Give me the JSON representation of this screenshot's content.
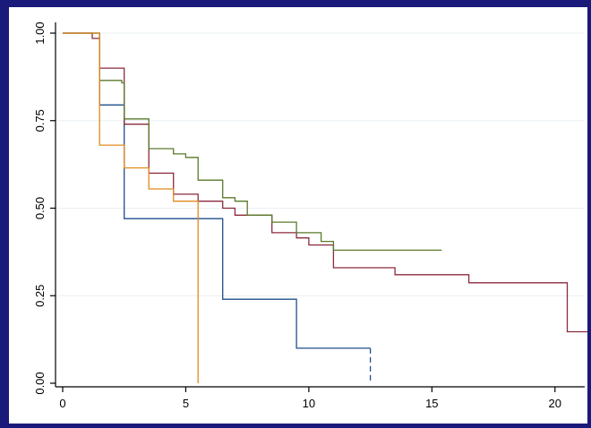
{
  "chart_data": {
    "type": "line",
    "step": true,
    "title": "",
    "xlabel": "",
    "ylabel": "",
    "xlim": [
      0,
      21.5
    ],
    "ylim": [
      0,
      1
    ],
    "x_ticks": [
      0,
      5,
      10,
      15,
      20
    ],
    "x_tick_labels": [
      "0",
      "5",
      "10",
      "15",
      "20"
    ],
    "y_ticks": [
      0,
      0.25,
      0.5,
      0.75,
      1
    ],
    "y_tick_labels": [
      "0.00",
      "0.25",
      "0.50",
      "0.75",
      "1.00"
    ],
    "grid": "horizontal",
    "legend": "none",
    "series": [
      {
        "color": "#1f4e8c",
        "points": [
          [
            0,
            1.0
          ],
          [
            1.5,
            1.0
          ],
          [
            1.5,
            0.795
          ],
          [
            2.5,
            0.795
          ],
          [
            2.5,
            0.47
          ],
          [
            6.5,
            0.47
          ],
          [
            6.5,
            0.24
          ],
          [
            9.5,
            0.24
          ],
          [
            9.5,
            0.1
          ],
          [
            12.5,
            0.1
          ],
          [
            12.5,
            0.0
          ]
        ],
        "dashed_from": 12.5
      },
      {
        "color": "#8c2a3c",
        "points": [
          [
            0,
            1.0
          ],
          [
            1.2,
            1.0
          ],
          [
            1.2,
            0.985
          ],
          [
            1.5,
            0.985
          ],
          [
            1.5,
            0.9
          ],
          [
            2.5,
            0.9
          ],
          [
            2.5,
            0.74
          ],
          [
            3.5,
            0.74
          ],
          [
            3.5,
            0.6
          ],
          [
            4.5,
            0.6
          ],
          [
            4.5,
            0.54
          ],
          [
            5.5,
            0.54
          ],
          [
            5.5,
            0.52
          ],
          [
            6.5,
            0.52
          ],
          [
            6.5,
            0.5
          ],
          [
            7.0,
            0.5
          ],
          [
            7.0,
            0.48
          ],
          [
            8.5,
            0.48
          ],
          [
            8.5,
            0.43
          ],
          [
            9.5,
            0.43
          ],
          [
            9.5,
            0.415
          ],
          [
            10.0,
            0.415
          ],
          [
            10.0,
            0.395
          ],
          [
            11.0,
            0.395
          ],
          [
            11.0,
            0.33
          ],
          [
            13.5,
            0.33
          ],
          [
            13.5,
            0.31
          ],
          [
            16.5,
            0.31
          ],
          [
            16.5,
            0.287
          ],
          [
            20.5,
            0.287
          ],
          [
            20.5,
            0.147
          ],
          [
            21.5,
            0.147
          ]
        ]
      },
      {
        "color": "#5a7a2a",
        "points": [
          [
            0,
            1.0
          ],
          [
            1.5,
            1.0
          ],
          [
            1.5,
            0.865
          ],
          [
            2.4,
            0.865
          ],
          [
            2.4,
            0.858
          ],
          [
            2.5,
            0.858
          ],
          [
            2.5,
            0.755
          ],
          [
            3.5,
            0.755
          ],
          [
            3.5,
            0.67
          ],
          [
            4.5,
            0.67
          ],
          [
            4.5,
            0.655
          ],
          [
            5.0,
            0.655
          ],
          [
            5.0,
            0.645
          ],
          [
            5.5,
            0.645
          ],
          [
            5.5,
            0.58
          ],
          [
            6.5,
            0.58
          ],
          [
            6.5,
            0.53
          ],
          [
            7.0,
            0.53
          ],
          [
            7.0,
            0.52
          ],
          [
            7.5,
            0.52
          ],
          [
            7.5,
            0.48
          ],
          [
            8.5,
            0.48
          ],
          [
            8.5,
            0.46
          ],
          [
            9.5,
            0.46
          ],
          [
            9.5,
            0.43
          ],
          [
            10.5,
            0.43
          ],
          [
            10.5,
            0.405
          ],
          [
            11.0,
            0.405
          ],
          [
            11.0,
            0.38
          ],
          [
            15.4,
            0.38
          ]
        ]
      },
      {
        "color": "#e08a1e",
        "points": [
          [
            0,
            1.0
          ],
          [
            1.5,
            1.0
          ],
          [
            1.5,
            0.68
          ],
          [
            2.5,
            0.68
          ],
          [
            2.5,
            0.615
          ],
          [
            3.5,
            0.615
          ],
          [
            3.5,
            0.555
          ],
          [
            4.5,
            0.555
          ],
          [
            4.5,
            0.52
          ],
          [
            5.5,
            0.52
          ],
          [
            5.5,
            0.0
          ]
        ]
      }
    ]
  }
}
